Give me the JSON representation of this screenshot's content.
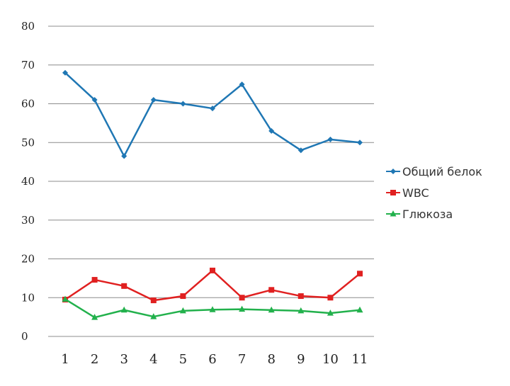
{
  "chart_data": {
    "type": "line",
    "title": "",
    "xlabel": "",
    "ylabel": "",
    "categories": [
      "1",
      "2",
      "3",
      "4",
      "5",
      "6",
      "7",
      "8",
      "9",
      "10",
      "11"
    ],
    "ylim": [
      0,
      80
    ],
    "yticks": [
      "0",
      "10",
      "20",
      "30",
      "40",
      "50",
      "60",
      "70",
      "80"
    ],
    "grid": true,
    "legend_position": "right",
    "series": [
      {
        "name": "Общий белок",
        "color": "#1f77b4",
        "marker": "diamond",
        "values": [
          68,
          61,
          46.5,
          61,
          60,
          58.8,
          65,
          53,
          48,
          50.8,
          50
        ]
      },
      {
        "name": "WBC",
        "color": "#e02020",
        "marker": "square",
        "values": [
          9.5,
          14.6,
          13,
          9.3,
          10.4,
          17,
          10,
          12,
          10.4,
          10,
          16.2
        ]
      },
      {
        "name": "Глюкоза",
        "color": "#22b14c",
        "marker": "triangle",
        "values": [
          9.6,
          4.9,
          6.8,
          5.1,
          6.6,
          6.9,
          7,
          6.8,
          6.6,
          6,
          6.8
        ]
      }
    ]
  }
}
